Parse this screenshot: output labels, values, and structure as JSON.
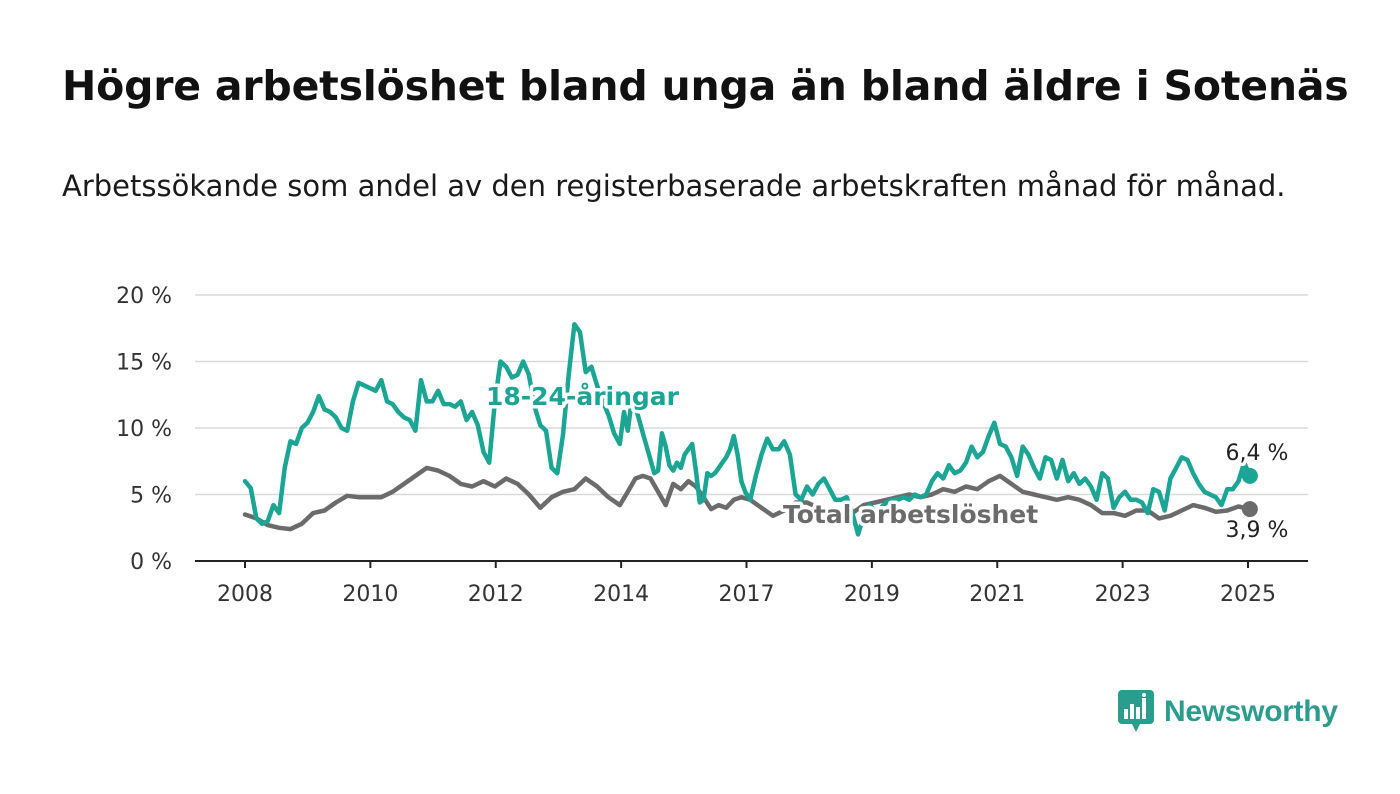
{
  "title": "Högre arbetslöshet bland unga än bland äldre i Sotenäs",
  "subtitle": "Arbetssökande som andel av den registerbaserade arbetskraften månad för månad.",
  "logo": {
    "text": "Newsworthy",
    "icon": "newsworthy-logo-icon",
    "color": "#2a9d8f"
  },
  "chart_data": {
    "type": "line",
    "title": "",
    "xlabel": "",
    "ylabel": "",
    "ylim": [
      0,
      20
    ],
    "xlim": [
      2007.6,
      2025.9
    ],
    "yticks": [
      0,
      5,
      10,
      15,
      20
    ],
    "ytick_labels": [
      "0 %",
      "5 %",
      "10 %",
      "15 %",
      "20 %"
    ],
    "xticks": [
      2008,
      2010,
      2012,
      2014,
      2017,
      2019,
      2021,
      2023,
      2025
    ],
    "xtick_labels": [
      "2008",
      "2010",
      "2012",
      "2014",
      "2017",
      "2019",
      "2021",
      "2023",
      "2025"
    ],
    "grid": "horizontal",
    "series": [
      {
        "name": "18-24-åringar",
        "color": "#1aa594",
        "end_label": "6,4 %",
        "points": [
          [
            2008.0,
            6.0
          ],
          [
            2008.1,
            5.5
          ],
          [
            2008.2,
            3.2
          ],
          [
            2008.3,
            2.8
          ],
          [
            2008.4,
            3.0
          ],
          [
            2008.5,
            4.2
          ],
          [
            2008.6,
            3.6
          ],
          [
            2008.7,
            7.0
          ],
          [
            2008.8,
            9.0
          ],
          [
            2008.9,
            8.8
          ],
          [
            2009.0,
            10.0
          ],
          [
            2009.1,
            10.4
          ],
          [
            2009.2,
            11.2
          ],
          [
            2009.3,
            12.4
          ],
          [
            2009.4,
            11.4
          ],
          [
            2009.5,
            11.2
          ],
          [
            2009.6,
            10.8
          ],
          [
            2009.7,
            10.0
          ],
          [
            2009.8,
            9.8
          ],
          [
            2009.9,
            12.0
          ],
          [
            2010.0,
            13.4
          ],
          [
            2010.1,
            13.2
          ],
          [
            2010.2,
            13.0
          ],
          [
            2010.3,
            12.8
          ],
          [
            2010.4,
            13.6
          ],
          [
            2010.5,
            12.0
          ],
          [
            2010.6,
            11.8
          ],
          [
            2010.7,
            11.2
          ],
          [
            2010.8,
            10.8
          ],
          [
            2010.9,
            10.6
          ],
          [
            2011.0,
            9.8
          ],
          [
            2011.1,
            13.6
          ],
          [
            2011.2,
            12.0
          ],
          [
            2011.3,
            12.0
          ],
          [
            2011.4,
            12.8
          ],
          [
            2011.5,
            11.8
          ],
          [
            2011.6,
            11.8
          ],
          [
            2011.7,
            11.6
          ],
          [
            2011.8,
            12.0
          ],
          [
            2011.9,
            10.6
          ],
          [
            2012.0,
            11.2
          ],
          [
            2012.1,
            10.2
          ],
          [
            2012.2,
            8.2
          ],
          [
            2012.3,
            7.4
          ],
          [
            2012.4,
            12.0
          ],
          [
            2012.5,
            15.0
          ],
          [
            2012.6,
            14.6
          ],
          [
            2012.7,
            13.8
          ],
          [
            2012.8,
            14.0
          ],
          [
            2012.9,
            15.0
          ],
          [
            2013.0,
            14.0
          ],
          [
            2013.1,
            11.6
          ],
          [
            2013.2,
            10.2
          ],
          [
            2013.3,
            9.8
          ],
          [
            2013.4,
            7.0
          ],
          [
            2013.5,
            6.6
          ],
          [
            2013.6,
            9.5
          ],
          [
            2013.7,
            14.0
          ],
          [
            2013.8,
            17.8
          ],
          [
            2013.9,
            17.2
          ],
          [
            2014.0,
            14.2
          ],
          [
            2014.1,
            14.6
          ],
          [
            2014.2,
            13.2
          ],
          [
            2014.3,
            12.0
          ],
          [
            2014.4,
            11.0
          ],
          [
            2014.5,
            9.6
          ],
          [
            2014.6,
            8.8
          ],
          [
            2014.7,
            11.2
          ],
          [
            2014.8,
            9.8
          ],
          [
            2014.9,
            12.0
          ],
          [
            2015.0,
            11.6
          ],
          [
            2015.1,
            10.6
          ],
          [
            2015.2,
            9.6
          ],
          [
            2015.3,
            8.6
          ],
          [
            2015.4,
            7.6
          ],
          [
            2015.5,
            6.6
          ],
          [
            2015.6,
            6.8
          ],
          [
            2015.7,
            9.6
          ],
          [
            2015.8,
            8.6
          ],
          [
            2015.9,
            7.2
          ],
          [
            2016.0,
            6.8
          ],
          [
            2016.1,
            7.4
          ],
          [
            2016.2,
            7.0
          ],
          [
            2016.3,
            8.0
          ],
          [
            2016.4,
            8.4
          ],
          [
            2016.5,
            8.8
          ],
          [
            2016.6,
            6.8
          ],
          [
            2016.7,
            4.4
          ],
          [
            2016.8,
            4.6
          ],
          [
            2016.9,
            6.6
          ],
          [
            2017.0,
            6.4
          ],
          [
            2017.1,
            6.6
          ],
          [
            2017.2,
            7.0
          ],
          [
            2017.3,
            7.4
          ],
          [
            2017.4,
            7.8
          ],
          [
            2017.5,
            8.4
          ],
          [
            2017.6,
            9.4
          ],
          [
            2017.7,
            8.0
          ],
          [
            2017.8,
            6.0
          ],
          [
            2017.9,
            5.2
          ],
          [
            2018.0,
            4.6
          ],
          [
            2018.1,
            6.4
          ],
          [
            2018.2,
            8.0
          ],
          [
            2018.3,
            9.2
          ],
          [
            2018.4,
            8.4
          ],
          [
            2018.5,
            8.4
          ],
          [
            2018.6,
            9.0
          ],
          [
            2018.7,
            8.0
          ],
          [
            2018.8,
            5.0
          ],
          [
            2018.9,
            4.6
          ],
          [
            2019.0,
            5.6
          ],
          [
            2019.1,
            5.0
          ],
          [
            2019.2,
            5.8
          ],
          [
            2019.3,
            6.2
          ],
          [
            2019.4,
            5.4
          ],
          [
            2019.5,
            4.6
          ],
          [
            2019.6,
            4.6
          ],
          [
            2019.7,
            4.8
          ],
          [
            2019.8,
            3.6
          ],
          [
            2019.9,
            2.0
          ],
          [
            2020.0,
            3.4
          ],
          [
            2020.1,
            4.2
          ],
          [
            2020.2,
            3.8
          ],
          [
            2020.3,
            4.0
          ],
          [
            2020.4,
            4.4
          ],
          [
            2020.5,
            4.6
          ],
          [
            2020.6,
            4.6
          ],
          [
            2020.7,
            4.8
          ],
          [
            2020.8,
            4.6
          ],
          [
            2020.9,
            5.0
          ],
          [
            2021.0,
            4.8
          ],
          [
            2021.1,
            5.0
          ],
          [
            2021.2,
            6.0
          ],
          [
            2021.3,
            6.6
          ],
          [
            2021.4,
            6.2
          ],
          [
            2021.5,
            7.2
          ],
          [
            2021.6,
            6.6
          ],
          [
            2021.7,
            6.8
          ],
          [
            2021.8,
            7.4
          ],
          [
            2021.9,
            8.6
          ],
          [
            2022.0,
            7.8
          ],
          [
            2022.1,
            8.2
          ],
          [
            2022.2,
            9.4
          ],
          [
            2022.3,
            10.4
          ],
          [
            2022.4,
            8.8
          ],
          [
            2022.5,
            8.6
          ],
          [
            2022.6,
            7.8
          ],
          [
            2022.7,
            6.4
          ],
          [
            2022.8,
            8.6
          ],
          [
            2022.9,
            8.0
          ],
          [
            2023.0,
            7.0
          ],
          [
            2023.1,
            6.2
          ],
          [
            2023.2,
            7.8
          ],
          [
            2023.3,
            7.6
          ],
          [
            2023.4,
            6.2
          ],
          [
            2023.5,
            7.6
          ],
          [
            2023.6,
            6.0
          ],
          [
            2023.7,
            6.6
          ],
          [
            2023.8,
            5.8
          ],
          [
            2023.9,
            6.2
          ],
          [
            2024.0,
            5.6
          ],
          [
            2024.1,
            4.6
          ],
          [
            2024.2,
            6.6
          ],
          [
            2024.3,
            6.2
          ],
          [
            2024.4,
            4.0
          ],
          [
            2024.5,
            4.8
          ],
          [
            2024.6,
            5.2
          ],
          [
            2024.7,
            4.6
          ],
          [
            2024.8,
            4.6
          ],
          [
            2024.9,
            4.4
          ],
          [
            2025.0,
            3.6
          ],
          [
            2025.1,
            5.4
          ],
          [
            2025.2,
            5.2
          ],
          [
            2025.3,
            3.8
          ],
          [
            2025.4,
            6.2
          ],
          [
            2025.5,
            7.0
          ],
          [
            2025.6,
            7.8
          ],
          [
            2025.7,
            7.6
          ],
          [
            2025.8,
            6.6
          ],
          [
            2025.9,
            5.8
          ],
          [
            2026.0,
            5.2
          ],
          [
            2026.1,
            5.0
          ],
          [
            2026.2,
            4.8
          ],
          [
            2026.3,
            4.2
          ],
          [
            2026.4,
            5.4
          ],
          [
            2026.5,
            5.4
          ],
          [
            2026.6,
            6.0
          ],
          [
            2026.7,
            7.4
          ],
          [
            2026.8,
            6.4
          ]
        ]
      },
      {
        "name": "Total arbetslöshet",
        "color": "#6b6b6b",
        "end_label": "3,9 %",
        "points": [
          [
            2008.0,
            3.5
          ],
          [
            2008.2,
            3.2
          ],
          [
            2008.4,
            2.7
          ],
          [
            2008.6,
            2.5
          ],
          [
            2008.8,
            2.4
          ],
          [
            2009.0,
            2.8
          ],
          [
            2009.2,
            3.6
          ],
          [
            2009.4,
            3.8
          ],
          [
            2009.6,
            4.4
          ],
          [
            2009.8,
            4.9
          ],
          [
            2010.0,
            4.8
          ],
          [
            2010.2,
            4.8
          ],
          [
            2010.4,
            4.8
          ],
          [
            2010.6,
            5.2
          ],
          [
            2010.8,
            5.8
          ],
          [
            2011.0,
            6.4
          ],
          [
            2011.2,
            7.0
          ],
          [
            2011.4,
            6.8
          ],
          [
            2011.6,
            6.4
          ],
          [
            2011.8,
            5.8
          ],
          [
            2012.0,
            5.6
          ],
          [
            2012.2,
            6.0
          ],
          [
            2012.4,
            5.6
          ],
          [
            2012.6,
            6.2
          ],
          [
            2012.8,
            5.8
          ],
          [
            2013.0,
            5.0
          ],
          [
            2013.2,
            4.0
          ],
          [
            2013.4,
            4.8
          ],
          [
            2013.6,
            5.2
          ],
          [
            2013.8,
            5.4
          ],
          [
            2014.0,
            6.2
          ],
          [
            2014.2,
            5.6
          ],
          [
            2014.4,
            4.8
          ],
          [
            2014.6,
            4.2
          ],
          [
            2014.8,
            5.2
          ],
          [
            2015.0,
            6.2
          ],
          [
            2015.2,
            6.4
          ],
          [
            2015.4,
            6.2
          ],
          [
            2015.6,
            5.2
          ],
          [
            2015.8,
            4.2
          ],
          [
            2016.0,
            5.8
          ],
          [
            2016.2,
            5.4
          ],
          [
            2016.4,
            6.0
          ],
          [
            2016.6,
            5.6
          ],
          [
            2016.8,
            4.8
          ],
          [
            2017.0,
            3.9
          ],
          [
            2017.2,
            4.2
          ],
          [
            2017.4,
            4.0
          ],
          [
            2017.6,
            4.6
          ],
          [
            2017.8,
            4.8
          ],
          [
            2018.0,
            4.6
          ],
          [
            2018.2,
            4.0
          ],
          [
            2018.4,
            3.4
          ],
          [
            2018.6,
            3.8
          ],
          [
            2018.8,
            4.4
          ],
          [
            2019.0,
            4.4
          ],
          [
            2019.2,
            4.0
          ],
          [
            2019.4,
            3.2
          ],
          [
            2019.6,
            3.2
          ],
          [
            2019.8,
            3.6
          ],
          [
            2020.0,
            4.2
          ],
          [
            2020.2,
            4.4
          ],
          [
            2020.4,
            4.6
          ],
          [
            2020.6,
            4.8
          ],
          [
            2020.8,
            5.0
          ],
          [
            2021.0,
            4.8
          ],
          [
            2021.2,
            5.0
          ],
          [
            2021.4,
            5.4
          ],
          [
            2021.6,
            5.2
          ],
          [
            2021.8,
            5.6
          ],
          [
            2022.0,
            5.4
          ],
          [
            2022.2,
            6.0
          ],
          [
            2022.4,
            6.4
          ],
          [
            2022.6,
            5.8
          ],
          [
            2022.8,
            5.2
          ],
          [
            2023.0,
            5.0
          ],
          [
            2023.2,
            4.8
          ],
          [
            2023.4,
            4.6
          ],
          [
            2023.6,
            4.8
          ],
          [
            2023.8,
            4.6
          ],
          [
            2024.0,
            4.2
          ],
          [
            2024.2,
            3.6
          ],
          [
            2024.4,
            3.6
          ],
          [
            2024.6,
            3.4
          ],
          [
            2024.8,
            3.8
          ],
          [
            2025.0,
            3.8
          ],
          [
            2025.2,
            3.2
          ],
          [
            2025.4,
            3.4
          ],
          [
            2025.6,
            3.8
          ],
          [
            2025.8,
            4.2
          ],
          [
            2026.0,
            4.0
          ],
          [
            2026.2,
            3.7
          ],
          [
            2026.4,
            3.8
          ],
          [
            2026.6,
            4.1
          ],
          [
            2026.8,
            3.9
          ]
        ]
      }
    ]
  }
}
